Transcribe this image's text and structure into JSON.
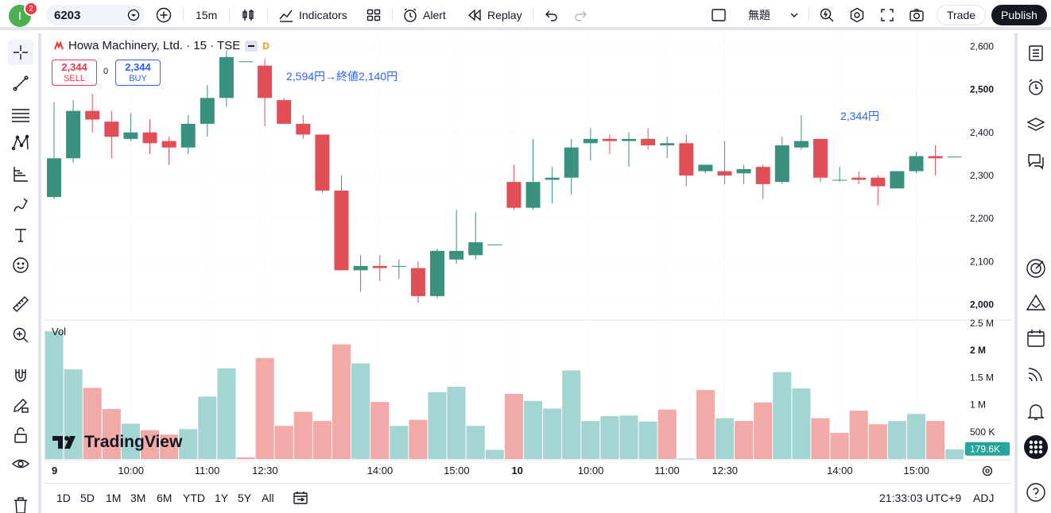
{
  "topbar": {
    "notification_count": "2",
    "avatar_letter": "I",
    "symbol": "6203",
    "interval": "15m",
    "indicators_label": "Indicators",
    "alert_label": "Alert",
    "replay_label": "Replay",
    "layout_name": "無題",
    "trade_label": "Trade",
    "publish_label": "Publish"
  },
  "legend": {
    "title": "Howa Machinery, Ltd. · 15 · TSE",
    "badge": "D",
    "sell_price": "2,344",
    "sell_label": "SELL",
    "spread": "0",
    "buy_price": "2,344",
    "buy_label": "BUY"
  },
  "annotations": {
    "note1": "2,594円→終値2,140円",
    "note2": "2,344円"
  },
  "volume_label": "Vol",
  "watermark": "TradingView",
  "colors": {
    "up": "#26a69a",
    "down": "#ef5350",
    "up_candle": "#3a917e",
    "down_candle": "#e04f56",
    "vol_up": "#a3d6d2",
    "vol_down": "#f2aaa8",
    "accent": "#2962ff"
  },
  "chart_data": {
    "type": "candlestick",
    "price_axis": {
      "ticks": [
        "2,600",
        "2,500",
        "2,400",
        "2,300",
        "2,200",
        "2,100",
        "2,000"
      ],
      "tick_values": [
        2600,
        2500,
        2400,
        2300,
        2200,
        2100,
        2000
      ],
      "bold_ticks": [
        "2,500",
        "2,000"
      ],
      "range": [
        1970,
        2630
      ]
    },
    "volume_axis": {
      "ticks": [
        "2.5 M",
        "2 M",
        "1.5 M",
        "1 M",
        "500 K"
      ],
      "tick_values": [
        2500000,
        2000000,
        1500000,
        1000000,
        500000
      ],
      "bold_ticks": [
        "2 M"
      ],
      "range": [
        0,
        2500000
      ],
      "last_value": "179.6K"
    },
    "time_axis": {
      "labels": [
        "9",
        "10:00",
        "11:00",
        "12:30",
        "14:00",
        "15:00",
        "10",
        "10:00",
        "11:00",
        "12:30",
        "14:00",
        "15:00"
      ],
      "bold_labels": [
        "9",
        "10"
      ],
      "label_bar_index": [
        0,
        4,
        8,
        11,
        17,
        21,
        24,
        28,
        32,
        35,
        41,
        45
      ]
    },
    "candles": [
      {
        "o": 2250,
        "h": 2470,
        "l": 2245,
        "c": 2340
      },
      {
        "o": 2340,
        "h": 2475,
        "l": 2330,
        "c": 2450
      },
      {
        "o": 2450,
        "h": 2490,
        "l": 2400,
        "c": 2430
      },
      {
        "o": 2425,
        "h": 2450,
        "l": 2340,
        "c": 2390
      },
      {
        "o": 2385,
        "h": 2445,
        "l": 2380,
        "c": 2400
      },
      {
        "o": 2400,
        "h": 2430,
        "l": 2350,
        "c": 2375
      },
      {
        "o": 2380,
        "h": 2390,
        "l": 2325,
        "c": 2365
      },
      {
        "o": 2365,
        "h": 2440,
        "l": 2350,
        "c": 2420
      },
      {
        "o": 2420,
        "h": 2510,
        "l": 2390,
        "c": 2480
      },
      {
        "o": 2480,
        "h": 2590,
        "l": 2460,
        "c": 2575
      },
      {
        "o": 2565,
        "h": 2565,
        "l": 2565,
        "c": 2565
      },
      {
        "o": 2555,
        "h": 2570,
        "l": 2415,
        "c": 2480
      },
      {
        "o": 2475,
        "h": 2480,
        "l": 2420,
        "c": 2420
      },
      {
        "o": 2420,
        "h": 2440,
        "l": 2385,
        "c": 2395
      },
      {
        "o": 2395,
        "h": 2395,
        "l": 2260,
        "c": 2265
      },
      {
        "o": 2265,
        "h": 2300,
        "l": 2080,
        "c": 2080
      },
      {
        "o": 2080,
        "h": 2115,
        "l": 2030,
        "c": 2090
      },
      {
        "o": 2090,
        "h": 2115,
        "l": 2055,
        "c": 2085
      },
      {
        "o": 2090,
        "h": 2105,
        "l": 2060,
        "c": 2090
      },
      {
        "o": 2085,
        "h": 2100,
        "l": 2005,
        "c": 2020
      },
      {
        "o": 2020,
        "h": 2130,
        "l": 2015,
        "c": 2125
      },
      {
        "o": 2105,
        "h": 2220,
        "l": 2095,
        "c": 2125
      },
      {
        "o": 2115,
        "h": 2215,
        "l": 2105,
        "c": 2145
      },
      {
        "o": 2140,
        "h": 2140,
        "l": 2140,
        "c": 2140
      },
      {
        "o": 2285,
        "h": 2325,
        "l": 2220,
        "c": 2225
      },
      {
        "o": 2225,
        "h": 2385,
        "l": 2220,
        "c": 2285
      },
      {
        "o": 2290,
        "h": 2320,
        "l": 2235,
        "c": 2295
      },
      {
        "o": 2295,
        "h": 2385,
        "l": 2255,
        "c": 2365
      },
      {
        "o": 2375,
        "h": 2410,
        "l": 2335,
        "c": 2385
      },
      {
        "o": 2385,
        "h": 2395,
        "l": 2350,
        "c": 2380
      },
      {
        "o": 2380,
        "h": 2400,
        "l": 2320,
        "c": 2385
      },
      {
        "o": 2385,
        "h": 2410,
        "l": 2360,
        "c": 2370
      },
      {
        "o": 2370,
        "h": 2390,
        "l": 2340,
        "c": 2375
      },
      {
        "o": 2375,
        "h": 2395,
        "l": 2275,
        "c": 2300
      },
      {
        "o": 2310,
        "h": 2325,
        "l": 2305,
        "c": 2325
      },
      {
        "o": 2310,
        "h": 2380,
        "l": 2280,
        "c": 2300
      },
      {
        "o": 2305,
        "h": 2325,
        "l": 2280,
        "c": 2315
      },
      {
        "o": 2320,
        "h": 2325,
        "l": 2245,
        "c": 2280
      },
      {
        "o": 2285,
        "h": 2390,
        "l": 2280,
        "c": 2370
      },
      {
        "o": 2365,
        "h": 2440,
        "l": 2360,
        "c": 2380
      },
      {
        "o": 2385,
        "h": 2385,
        "l": 2285,
        "c": 2295
      },
      {
        "o": 2290,
        "h": 2320,
        "l": 2285,
        "c": 2290
      },
      {
        "o": 2295,
        "h": 2310,
        "l": 2280,
        "c": 2290
      },
      {
        "o": 2295,
        "h": 2300,
        "l": 2230,
        "c": 2275
      },
      {
        "o": 2270,
        "h": 2310,
        "l": 2270,
        "c": 2310
      },
      {
        "o": 2310,
        "h": 2355,
        "l": 2305,
        "c": 2345
      },
      {
        "o": 2345,
        "h": 2370,
        "l": 2300,
        "c": 2340
      },
      {
        "o": 2344,
        "h": 2344,
        "l": 2344,
        "c": 2344
      }
    ],
    "volumes": [
      2350000,
      1650000,
      1310000,
      920000,
      650000,
      530000,
      450000,
      550000,
      1150000,
      1670000,
      30000,
      1860000,
      610000,
      870000,
      700000,
      2110000,
      1760000,
      1050000,
      610000,
      720000,
      1230000,
      1330000,
      610000,
      170000,
      1200000,
      1070000,
      930000,
      1630000,
      700000,
      790000,
      800000,
      690000,
      910000,
      10000,
      1270000,
      750000,
      700000,
      1040000,
      1600000,
      1300000,
      750000,
      480000,
      890000,
      640000,
      700000,
      830000,
      700000,
      179600
    ],
    "volume_direction": [
      "up",
      "up",
      "down",
      "down",
      "up",
      "down",
      "down",
      "up",
      "up",
      "up",
      "down",
      "down",
      "down",
      "down",
      "down",
      "down",
      "up",
      "down",
      "up",
      "down",
      "up",
      "up",
      "up",
      "up",
      "down",
      "up",
      "up",
      "up",
      "up",
      "up",
      "up",
      "up",
      "down",
      "up",
      "down",
      "up",
      "down",
      "down",
      "up",
      "up",
      "down",
      "down",
      "down",
      "down",
      "up",
      "up",
      "down",
      "up"
    ]
  },
  "bottombar": {
    "ranges": [
      "1D",
      "5D",
      "1M",
      "3M",
      "6M",
      "YTD",
      "1Y",
      "5Y",
      "All"
    ],
    "clock": "21:33:03 UTC+9",
    "adj": "ADJ"
  }
}
